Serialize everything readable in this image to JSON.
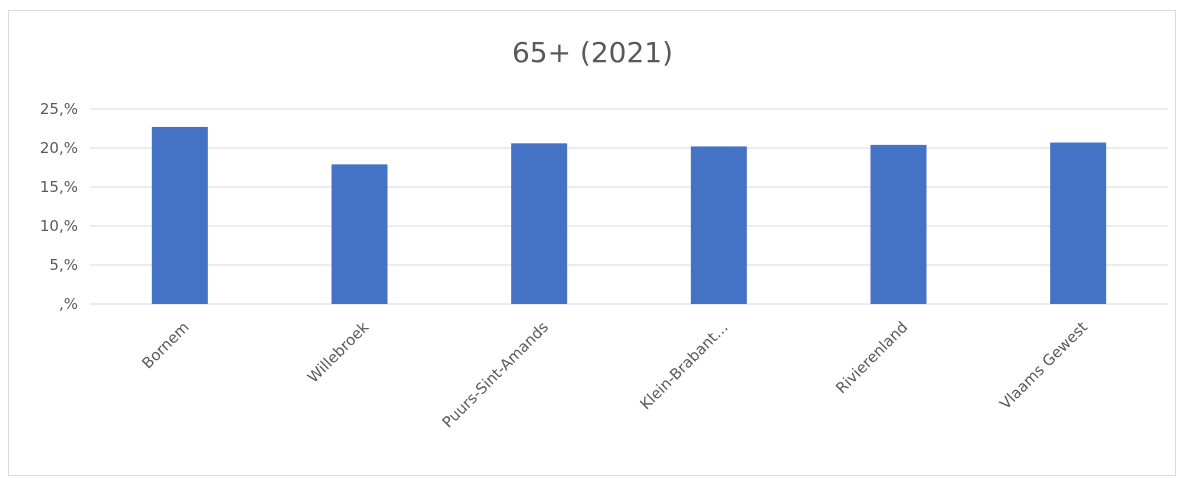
{
  "chart_data": {
    "type": "bar",
    "title": "65+ (2021)",
    "categories": [
      "Bornem",
      "Willebroek",
      "Puurs-Sint-Amands",
      "Klein-Brabant…",
      "Rivierenland",
      "Vlaams Gewest"
    ],
    "values": [
      22.7,
      17.9,
      20.6,
      20.2,
      20.4,
      20.7
    ],
    "y_ticks": [
      ",%",
      "5,%",
      "10,%",
      "15,%",
      "20,%",
      "25,%"
    ],
    "ylim": [
      0,
      25
    ],
    "grid": true,
    "legend": "none",
    "bar_color": "#4472c4"
  }
}
